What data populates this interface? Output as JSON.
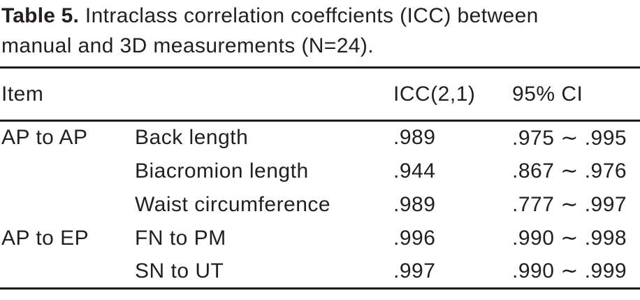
{
  "caption": {
    "label": "Table 5.",
    "line1": "Intraclass correlation coeffcients (ICC) between",
    "line2": "manual and 3D measurements (N=24)."
  },
  "table": {
    "headers": {
      "item": "Item",
      "icc": "ICC(2,1)",
      "ci": "95% CI"
    },
    "rows": [
      {
        "group": "AP to AP",
        "measurement": "Back length",
        "icc": ".989",
        "ci": ".975 ∼ .995"
      },
      {
        "group": "",
        "measurement": "Biacromion length",
        "icc": ".944",
        "ci": ".867 ∼ .976"
      },
      {
        "group": "",
        "measurement": "Waist circumference",
        "icc": ".989",
        "ci": ".777 ∼ .997"
      },
      {
        "group": "AP to EP",
        "measurement": "FN to PM",
        "icc": ".996",
        "ci": ".990 ∼ .998"
      },
      {
        "group": "",
        "measurement": "SN to UT",
        "icc": ".997",
        "ci": ".990 ∼ .999"
      }
    ],
    "sample_size": 24
  },
  "colors": {
    "text": "#231f20",
    "rule": "#1c1c1c",
    "background": "#ffffff"
  }
}
